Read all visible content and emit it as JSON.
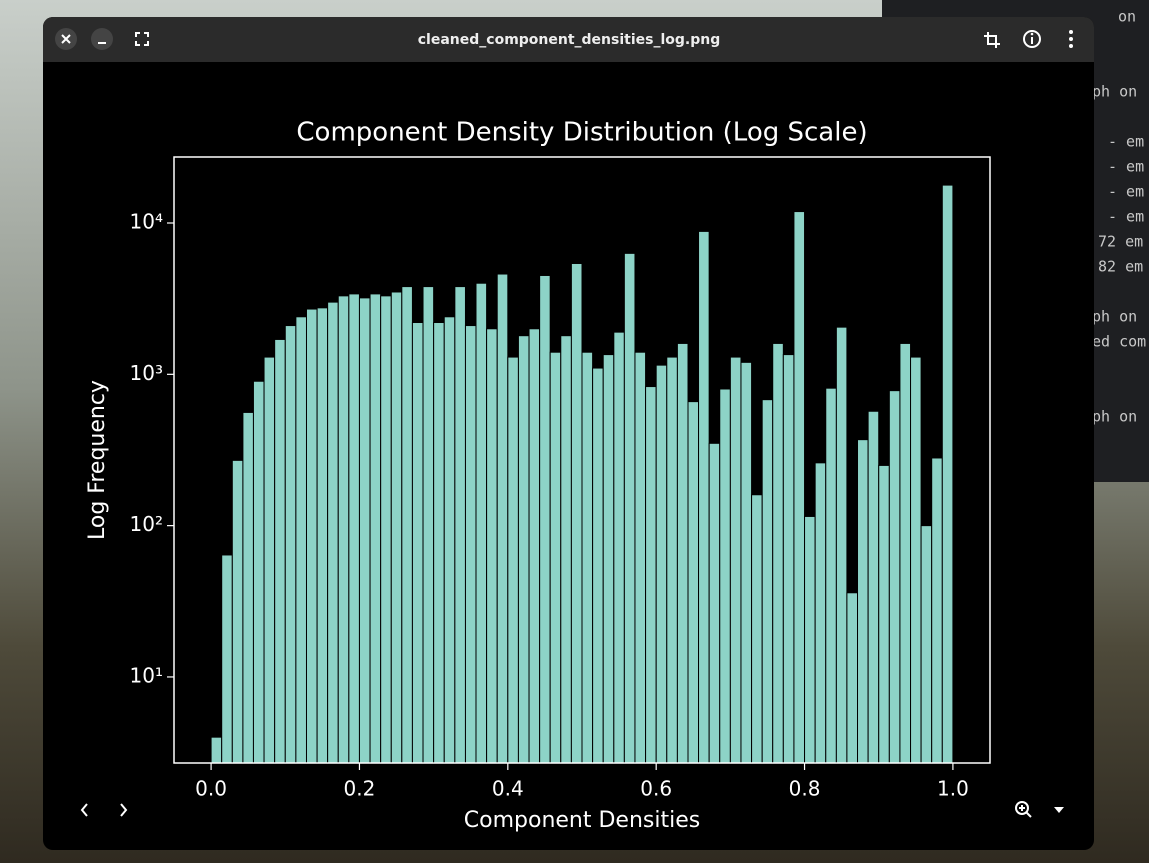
{
  "window": {
    "title": "cleaned_component_densities_log.png"
  },
  "terminal": {
    "lines": [
      "on",
      "ph on",
      "- em",
      "- em",
      "- em",
      "- em",
      "72 em",
      "82 em",
      "ph on",
      "ed com",
      "ph on"
    ]
  },
  "chart_data": {
    "type": "histogram",
    "title": "Component Density Distribution (Log Scale)",
    "xlabel": "Component Densities",
    "ylabel": "Log Frequency",
    "bins": [
      0,
      0.0143,
      0.0286,
      0.0429,
      0.0571,
      0.0714,
      0.0857,
      0.1,
      0.1143,
      0.1286,
      0.1429,
      0.1571,
      0.1714,
      0.1857,
      0.2,
      0.2143,
      0.2286,
      0.2429,
      0.2571,
      0.2714,
      0.2857,
      0.3,
      0.3143,
      0.3286,
      0.3429,
      0.3571,
      0.3714,
      0.3857,
      0.4,
      0.4143,
      0.4286,
      0.4429,
      0.4571,
      0.4714,
      0.4857,
      0.5,
      0.5143,
      0.5286,
      0.5429,
      0.5571,
      0.5714,
      0.5857,
      0.6,
      0.6143,
      0.6286,
      0.6429,
      0.6571,
      0.6714,
      0.6857,
      0.7,
      0.7143,
      0.7286,
      0.7429,
      0.7571,
      0.7714,
      0.7857,
      0.8,
      0.8143,
      0.8286,
      0.8429,
      0.8571,
      0.8714,
      0.8857,
      0.9,
      0.9143,
      0.9286,
      0.9429,
      0.9571,
      0.9714,
      0.9857,
      1
    ],
    "counts": [
      4,
      64,
      270,
      560,
      900,
      1300,
      1700,
      2100,
      2400,
      2700,
      2750,
      3000,
      3300,
      3400,
      3200,
      3400,
      3300,
      3500,
      3800,
      2200,
      3800,
      2200,
      2400,
      3800,
      2100,
      4000,
      2000,
      4600,
      1300,
      1800,
      2000,
      4500,
      1400,
      1800,
      5400,
      1400,
      1100,
      1350,
      1900,
      6300,
      1400,
      830,
      1150,
      1300,
      1600,
      660,
      8800,
      350,
      800,
      1300,
      1200,
      160,
      680,
      1600,
      1350,
      11900,
      115,
      260,
      810,
      2050,
      36,
      370,
      570,
      250,
      780,
      1600,
      1300,
      100,
      280,
      17800
    ],
    "color": "#8dd3c7",
    "edgecolor": "#000000",
    "xlim": [
      -0.05,
      1.05
    ],
    "xticks": [
      {
        "value": 0,
        "label": "0.0"
      },
      0.2,
      0.4,
      0.6,
      0.8,
      {
        "value": 1,
        "label": "1.0"
      }
    ],
    "ylim": [
      2.7,
      27300
    ],
    "log_y": true,
    "yticks": [
      {
        "value": 10,
        "label": "10¹"
      },
      {
        "value": 100,
        "label": "10²"
      },
      {
        "value": 1000,
        "label": "10³"
      },
      {
        "value": 10000,
        "label": "10⁴"
      }
    ]
  }
}
